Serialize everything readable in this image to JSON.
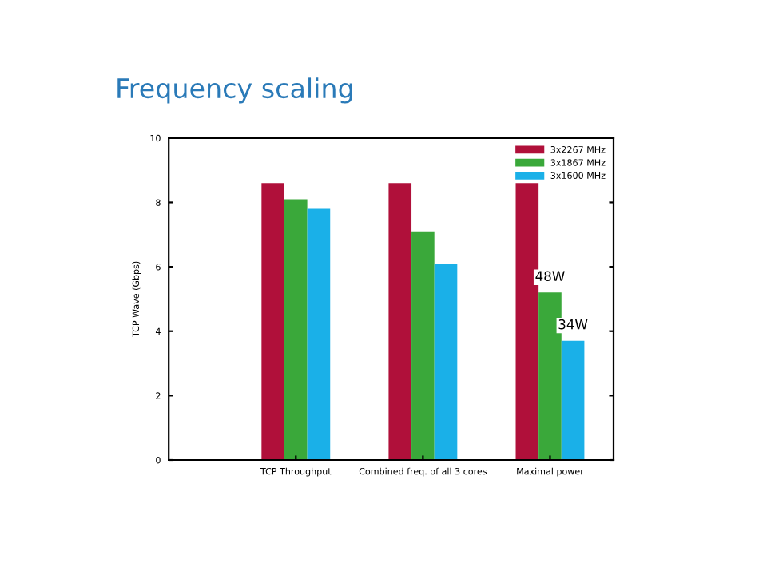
{
  "chart_data": {
    "type": "bar",
    "title": "Frequency scaling",
    "ylabel": "TCP Wave (Gbps)",
    "categories": [
      "TCP Throughput",
      "Combined freq. of all 3 cores",
      "Maximal power"
    ],
    "series": [
      {
        "name": "3x2267 MHz",
        "color": "#b0103a",
        "values": [
          8.6,
          8.6,
          8.6
        ]
      },
      {
        "name": "3x1867 MHz",
        "color": "#3aa83a",
        "values": [
          8.1,
          7.1,
          5.2
        ]
      },
      {
        "name": "3x1600 MHz",
        "color": "#1ab0e8",
        "values": [
          7.8,
          6.1,
          3.7
        ]
      }
    ],
    "annotations": [
      "48W",
      "34W"
    ],
    "ylim": [
      0,
      10
    ],
    "yticks": [
      0,
      2,
      4,
      6,
      8,
      10
    ],
    "grid": false,
    "legend": "top right"
  }
}
